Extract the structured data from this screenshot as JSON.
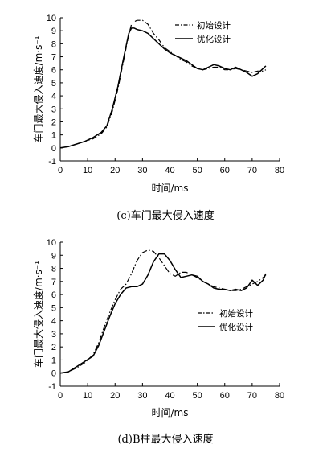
{
  "chart_data": [
    {
      "type": "line",
      "title": "(c)车门最大侵入速度",
      "xlabel": "时间/ms",
      "ylabel": "车门最大侵入速度/m·s⁻¹",
      "xlim": [
        0,
        80
      ],
      "ylim": [
        -1,
        10
      ],
      "xticks": [
        0,
        10,
        20,
        30,
        40,
        50,
        60,
        70,
        80
      ],
      "yticks": [
        -1,
        0,
        1,
        2,
        3,
        4,
        5,
        6,
        7,
        8,
        9,
        10
      ],
      "grid": false,
      "legend_position": "top-right",
      "series": [
        {
          "name": "初始设计",
          "style": "dash-dot",
          "x": [
            0,
            3,
            6,
            9,
            12,
            15,
            17,
            19,
            21,
            23,
            25,
            26,
            27,
            28,
            30,
            32,
            34,
            36,
            38,
            40,
            42,
            44,
            46,
            48,
            50,
            52,
            54,
            56,
            58,
            60,
            62,
            64,
            66,
            68,
            70,
            72,
            74,
            75
          ],
          "y": [
            0,
            0.1,
            0.3,
            0.5,
            0.7,
            1.1,
            1.6,
            2.8,
            4.5,
            6.6,
            8.7,
            9.5,
            9.7,
            9.8,
            9.8,
            9.5,
            8.8,
            8.3,
            7.7,
            7.4,
            7.1,
            6.8,
            6.6,
            6.3,
            6.1,
            6.0,
            6.1,
            6.2,
            6.2,
            6.0,
            6.0,
            6.1,
            6.0,
            5.9,
            5.8,
            5.9,
            5.9,
            6.0
          ]
        },
        {
          "name": "优化设计",
          "style": "solid",
          "x": [
            0,
            3,
            6,
            9,
            12,
            15,
            17,
            19,
            21,
            23,
            25,
            26,
            27,
            28,
            30,
            32,
            34,
            36,
            38,
            40,
            42,
            44,
            46,
            48,
            50,
            52,
            54,
            56,
            58,
            60,
            62,
            64,
            66,
            68,
            70,
            72,
            74,
            75
          ],
          "y": [
            0,
            0.1,
            0.3,
            0.5,
            0.8,
            1.2,
            1.7,
            3.0,
            4.7,
            6.8,
            8.8,
            9.2,
            9.2,
            9.1,
            9.0,
            8.8,
            8.4,
            8.0,
            7.6,
            7.3,
            7.1,
            6.9,
            6.7,
            6.4,
            6.1,
            6.0,
            6.2,
            6.4,
            6.3,
            6.1,
            6.0,
            6.2,
            6.0,
            5.8,
            5.5,
            5.7,
            6.1,
            6.3
          ]
        }
      ]
    },
    {
      "type": "line",
      "title": "(d)B柱最大侵入速度",
      "xlabel": "时间/ms",
      "ylabel": "车门最大侵入速度/m·s⁻¹",
      "xlim": [
        0,
        80
      ],
      "ylim": [
        -1,
        10
      ],
      "xticks": [
        0,
        10,
        20,
        30,
        40,
        50,
        60,
        70,
        80
      ],
      "yticks": [
        -1,
        0,
        1,
        2,
        3,
        4,
        5,
        6,
        7,
        8,
        9,
        10
      ],
      "grid": false,
      "legend_position": "bottom-right",
      "series": [
        {
          "name": "初始设计",
          "style": "dash-dot",
          "x": [
            0,
            3,
            6,
            9,
            12,
            14,
            16,
            18,
            20,
            22,
            24,
            26,
            28,
            30,
            32,
            34,
            36,
            38,
            40,
            42,
            44,
            46,
            48,
            50,
            52,
            54,
            56,
            58,
            60,
            62,
            64,
            66,
            68,
            70,
            72,
            74,
            75
          ],
          "y": [
            0,
            0.1,
            0.4,
            0.8,
            1.4,
            2.3,
            3.5,
            4.6,
            5.6,
            6.4,
            6.8,
            7.6,
            8.6,
            9.2,
            9.4,
            9.3,
            8.8,
            8.2,
            7.6,
            7.4,
            7.7,
            7.7,
            7.5,
            7.3,
            7.0,
            6.8,
            6.6,
            6.5,
            6.4,
            6.3,
            6.3,
            6.4,
            6.6,
            6.8,
            7.0,
            7.3,
            7.5
          ]
        },
        {
          "name": "优化设计",
          "style": "solid",
          "x": [
            0,
            3,
            6,
            9,
            12,
            14,
            16,
            18,
            20,
            22,
            24,
            26,
            28,
            30,
            32,
            34,
            36,
            38,
            40,
            42,
            44,
            46,
            48,
            50,
            52,
            54,
            56,
            58,
            60,
            62,
            64,
            66,
            68,
            70,
            72,
            74,
            75
          ],
          "y": [
            0,
            0.1,
            0.5,
            0.9,
            1.3,
            2.1,
            3.2,
            4.3,
            5.3,
            6.0,
            6.5,
            6.6,
            6.6,
            6.8,
            7.5,
            8.5,
            9.1,
            9.1,
            8.6,
            7.9,
            7.3,
            7.4,
            7.5,
            7.4,
            7.0,
            6.8,
            6.5,
            6.4,
            6.4,
            6.3,
            6.4,
            6.3,
            6.5,
            7.1,
            6.7,
            7.1,
            7.6
          ]
        }
      ]
    }
  ]
}
